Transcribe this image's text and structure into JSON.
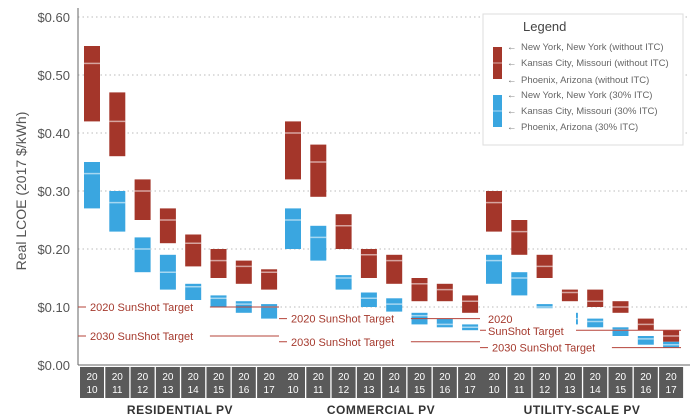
{
  "chart_data": {
    "type": "bar",
    "subtype": "floating-range",
    "ylabel": "Real LCOE (2017 $/kWh)",
    "ylim": [
      0,
      0.6
    ],
    "yticks": [
      "$0.00",
      "$0.10",
      "$0.20",
      "$0.30",
      "$0.40",
      "$0.50",
      "$0.60"
    ],
    "grid": true,
    "legend_placement": "top-right",
    "legend": {
      "title": "Legend",
      "entries": [
        "New York, New York (without ITC)",
        "Kansas City, Missouri (without ITC)",
        "Phoenix, Arizona (without ITC)",
        "New York, New York (30% ITC)",
        "Kansas City, Missouri (30% ITC)",
        "Phoenix, Arizona (30% ITC)"
      ]
    },
    "colors": {
      "without_itc": "#a4362a",
      "with_itc": "#3aa6e0",
      "target": "#b5433a",
      "year_strip": "#5a5a5a"
    },
    "years": [
      [
        "20",
        "10"
      ],
      [
        "20",
        "11"
      ],
      [
        "20",
        "12"
      ],
      [
        "20",
        "13"
      ],
      [
        "20",
        "14"
      ],
      [
        "20",
        "15"
      ],
      [
        "20",
        "16"
      ],
      [
        "20",
        "17"
      ]
    ],
    "groups": [
      {
        "name": "RESIDENTIAL PV",
        "without_itc": [
          [
            0.42,
            0.52,
            0.55
          ],
          [
            0.36,
            0.42,
            0.47
          ],
          [
            0.25,
            0.3,
            0.32
          ],
          [
            0.21,
            0.25,
            0.27
          ],
          [
            0.17,
            0.21,
            0.225
          ],
          [
            0.15,
            0.18,
            0.2
          ],
          [
            0.14,
            0.17,
            0.18
          ],
          [
            0.13,
            0.16,
            0.165
          ]
        ],
        "with_itc": [
          [
            0.27,
            0.33,
            0.35
          ],
          [
            0.23,
            0.28,
            0.3
          ],
          [
            0.16,
            0.2,
            0.22
          ],
          [
            0.13,
            0.16,
            0.19
          ],
          [
            0.11,
            0.135,
            0.14
          ],
          [
            0.1,
            0.115,
            0.12
          ],
          [
            0.09,
            0.105,
            0.11
          ],
          [
            0.08,
            0.1,
            0.105
          ]
        ],
        "targets": [
          {
            "label": "2020 SunShot Target",
            "value": 0.1
          },
          {
            "label": "2030 SunShot Target",
            "value": 0.05
          }
        ]
      },
      {
        "name": "COMMERCIAL PV",
        "without_itc": [
          [
            0.32,
            0.4,
            0.42
          ],
          [
            0.29,
            0.35,
            0.38
          ],
          [
            0.2,
            0.24,
            0.26
          ],
          [
            0.15,
            0.19,
            0.2
          ],
          [
            0.14,
            0.18,
            0.19
          ],
          [
            0.11,
            0.14,
            0.15
          ],
          [
            0.11,
            0.13,
            0.14
          ],
          [
            0.09,
            0.11,
            0.12
          ]
        ],
        "with_itc": [
          [
            0.2,
            0.25,
            0.27
          ],
          [
            0.18,
            0.22,
            0.24
          ],
          [
            0.13,
            0.15,
            0.155
          ],
          [
            0.1,
            0.115,
            0.125
          ],
          [
            0.09,
            0.105,
            0.115
          ],
          [
            0.07,
            0.085,
            0.09
          ],
          [
            0.065,
            0.07,
            0.08
          ],
          [
            0.06,
            0.065,
            0.07
          ]
        ],
        "targets": [
          {
            "label": "2020 SunShot Target",
            "value": 0.08
          },
          {
            "label": "2030 SunShot Target",
            "value": 0.04
          }
        ]
      },
      {
        "name": "UTILITY-SCALE PV",
        "without_itc": [
          [
            0.23,
            0.28,
            0.3
          ],
          [
            0.19,
            0.23,
            0.25
          ],
          [
            0.15,
            0.17,
            0.19
          ],
          [
            0.11,
            0.125,
            0.13
          ],
          [
            0.1,
            0.11,
            0.13
          ],
          [
            0.09,
            0.1,
            0.11
          ],
          [
            0.06,
            0.07,
            0.08
          ],
          [
            0.04,
            0.05,
            0.06
          ]
        ],
        "with_itc": [
          [
            0.14,
            0.18,
            0.19
          ],
          [
            0.12,
            0.15,
            0.16
          ],
          [
            0.09,
            0.1,
            0.105
          ],
          [
            0.07,
            0.08,
            0.09
          ],
          [
            0.065,
            0.075,
            0.08
          ],
          [
            0.05,
            0.06,
            0.065
          ],
          [
            0.035,
            0.045,
            0.05
          ],
          [
            0.03,
            0.035,
            0.04
          ]
        ],
        "targets": [
          {
            "label": "2020",
            "label2": "SunShot Target",
            "value": 0.06
          },
          {
            "label": "2030 SunShot Target",
            "value": 0.03
          }
        ]
      }
    ]
  }
}
